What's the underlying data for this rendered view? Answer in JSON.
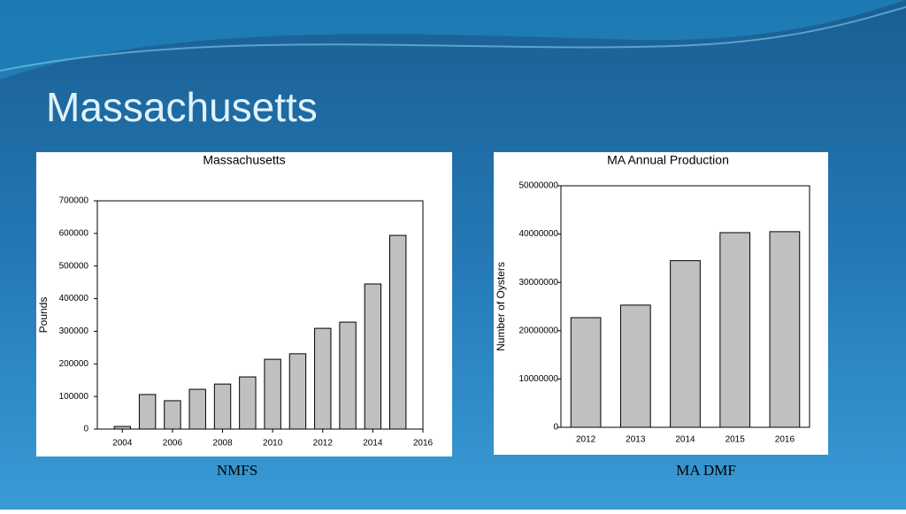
{
  "slide_title": "Massachusetts",
  "chart_data": [
    {
      "type": "bar",
      "title": "Massachusetts",
      "y_label": "Pounds",
      "source": "NMFS",
      "x": [
        2004,
        2005,
        2006,
        2007,
        2008,
        2009,
        2010,
        2011,
        2012,
        2013,
        2014,
        2015
      ],
      "values": [
        8000,
        106000,
        87000,
        122000,
        138000,
        160000,
        214000,
        231000,
        309000,
        328000,
        445000,
        594000
      ],
      "color": "#c0c0c0",
      "xlim": [
        2003,
        2016
      ],
      "xticks": [
        2004,
        2006,
        2008,
        2010,
        2012,
        2014,
        2016
      ],
      "ylim": [
        0,
        700000
      ],
      "yticks": [
        0,
        100000,
        200000,
        300000,
        400000,
        500000,
        600000,
        700000
      ],
      "grid": false
    },
    {
      "type": "bar",
      "title": "MA Annual Production",
      "y_label": "Number of Oysters",
      "source": "MA DMF",
      "categories": [
        "2012",
        "2013",
        "2014",
        "2015",
        "2016"
      ],
      "values": [
        22700000,
        25300000,
        34500000,
        40300000,
        40500000
      ],
      "color": "#c0c0c0",
      "ylim": [
        0,
        50000000
      ],
      "yticks": [
        0,
        10000000,
        20000000,
        30000000,
        40000000,
        50000000
      ],
      "grid": false
    }
  ]
}
